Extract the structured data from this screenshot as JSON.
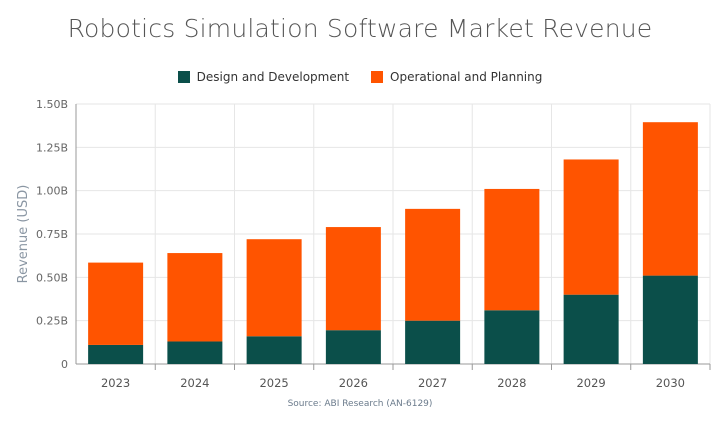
{
  "chart_data": {
    "type": "bar",
    "stacked": true,
    "title": "Robotics Simulation Software Market Revenue",
    "xlabel": "",
    "ylabel": "Revenue (USD)",
    "categories": [
      "2023",
      "2024",
      "2025",
      "2026",
      "2027",
      "2028",
      "2029",
      "2030"
    ],
    "series": [
      {
        "name": "Design and Development",
        "color": "#0b4f4a",
        "values": [
          0.11,
          0.13,
          0.16,
          0.195,
          0.25,
          0.31,
          0.4,
          0.51
        ]
      },
      {
        "name": "Operational and Planning",
        "color": "#ff5400",
        "values": [
          0.475,
          0.51,
          0.56,
          0.595,
          0.645,
          0.7,
          0.78,
          0.885
        ]
      }
    ],
    "ylim": [
      0,
      1.5
    ],
    "yticks": [
      0,
      0.25,
      0.5,
      0.75,
      1.0,
      1.25,
      1.5
    ],
    "ytick_labels": [
      "0",
      "0.25B",
      "0.50B",
      "0.75B",
      "1.00B",
      "1.25B",
      "1.50B"
    ],
    "grid": true,
    "legend_position": "top-center",
    "source": "Source: ABI Research (AN-6129)"
  }
}
